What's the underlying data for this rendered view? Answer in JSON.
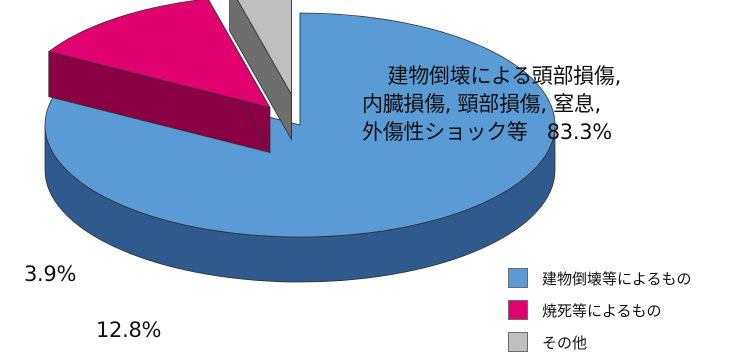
{
  "chart_data": {
    "type": "pie",
    "style": "3d-exploded",
    "slices": [
      {
        "label": "建物倒壊等によるもの",
        "value": 83.3,
        "value_label": "83.3%",
        "description": "建物倒壊による頭部損傷,\n内臓損傷, 頸部損傷, 窒息,\n外傷性ショック等",
        "color": "#5b9bd5",
        "side_color": "#2f5a8e"
      },
      {
        "label": "焼死等によるもの",
        "value": 12.8,
        "value_label": "12.8%",
        "color": "#e0006f",
        "side_color": "#8a0043"
      },
      {
        "label": "その他",
        "value": 3.9,
        "value_label": "3.9%",
        "color": "#bfbfbf",
        "side_color": "#6e6e6e"
      }
    ],
    "legend_position": "bottom-right"
  }
}
